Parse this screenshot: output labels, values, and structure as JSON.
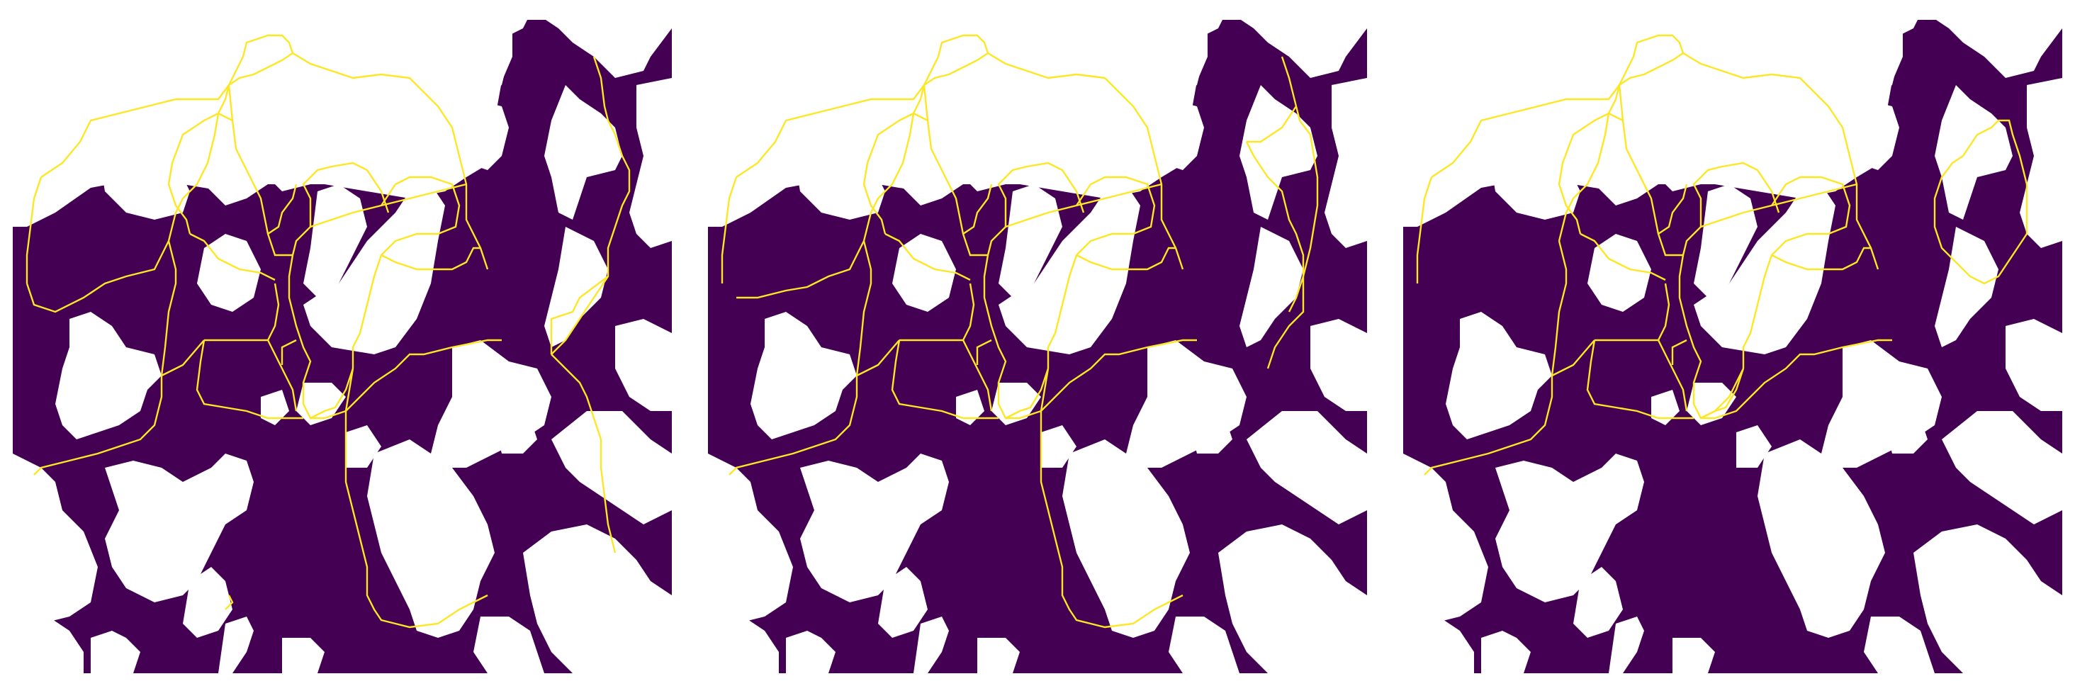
{
  "figure": {
    "panel_count": 3,
    "panels": [
      {
        "id": "panel-1",
        "content": "binary-mask-with-full-skeleton"
      },
      {
        "id": "panel-2",
        "content": "binary-mask-with-partial-skeleton"
      },
      {
        "id": "panel-3",
        "content": "binary-mask-with-closed-loop-skeleton"
      }
    ]
  },
  "colors": {
    "mask_fill": "#440154",
    "background": "#ffffff",
    "skeleton_line": "#fde725"
  }
}
